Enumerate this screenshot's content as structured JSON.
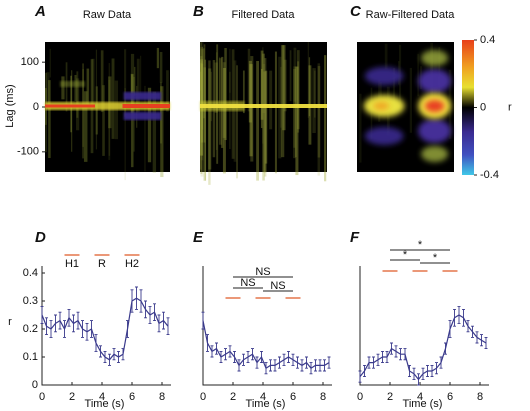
{
  "chart_data": [
    {
      "type": "heatmap",
      "panel": "A",
      "title": "Raw Data",
      "ylabel": "Lag (ms)",
      "ylim": [
        -145,
        145
      ],
      "yticks": [
        100,
        0,
        -100
      ]
    },
    {
      "type": "heatmap",
      "panel": "B",
      "title": "Filtered Data"
    },
    {
      "type": "heatmap",
      "panel": "C",
      "title": "Raw-Filtered Data",
      "colorbar": {
        "label": "r",
        "lim": [
          -0.4,
          0.4
        ],
        "ticks": [
          0.4,
          0,
          -0.4
        ]
      }
    },
    {
      "type": "line",
      "panel": "D",
      "xlabel": "Time (s)",
      "ylabel": "r",
      "color": "#3a3a8c",
      "xlim": [
        0,
        8.6
      ],
      "xticks": [
        0,
        2,
        4,
        6,
        8
      ],
      "ylim": [
        0,
        0.425
      ],
      "yticks": [
        0,
        0.1,
        0.2,
        0.3,
        0.4
      ],
      "x": [
        0,
        0.3,
        0.6,
        0.9,
        1.2,
        1.5,
        1.8,
        2.1,
        2.4,
        2.7,
        3.0,
        3.3,
        3.6,
        3.9,
        4.2,
        4.5,
        4.8,
        5.1,
        5.4,
        5.7,
        6.0,
        6.3,
        6.6,
        6.9,
        7.2,
        7.5,
        7.8,
        8.1,
        8.4
      ],
      "values": [
        0.25,
        0.21,
        0.2,
        0.22,
        0.23,
        0.2,
        0.24,
        0.22,
        0.23,
        0.2,
        0.19,
        0.2,
        0.15,
        0.12,
        0.1,
        0.09,
        0.11,
        0.1,
        0.11,
        0.2,
        0.3,
        0.31,
        0.3,
        0.27,
        0.25,
        0.26,
        0.22,
        0.23,
        0.21
      ],
      "errors": [
        0.03,
        0.03,
        0.03,
        0.03,
        0.03,
        0.03,
        0.03,
        0.03,
        0.03,
        0.03,
        0.03,
        0.03,
        0.03,
        0.02,
        0.02,
        0.02,
        0.02,
        0.02,
        0.02,
        0.03,
        0.04,
        0.04,
        0.04,
        0.03,
        0.03,
        0.03,
        0.03,
        0.03,
        0.03
      ],
      "intervals": [
        {
          "label": "H1",
          "start": 1.5,
          "end": 2.5
        },
        {
          "label": "R",
          "start": 3.5,
          "end": 4.5
        },
        {
          "label": "H2",
          "start": 5.5,
          "end": 6.5
        }
      ]
    },
    {
      "type": "line",
      "panel": "E",
      "xlabel": "Time (s)",
      "color": "#3a3a8c",
      "xlim": [
        0,
        8.6
      ],
      "xticks": [
        0,
        2,
        4,
        6,
        8
      ],
      "ylim": [
        0,
        0.425
      ],
      "x": [
        0,
        0.3,
        0.6,
        0.9,
        1.2,
        1.5,
        1.8,
        2.1,
        2.4,
        2.7,
        3.0,
        3.3,
        3.6,
        3.9,
        4.2,
        4.5,
        4.8,
        5.1,
        5.4,
        5.7,
        6.0,
        6.3,
        6.6,
        6.9,
        7.2,
        7.5,
        7.8,
        8.1,
        8.4
      ],
      "values": [
        0.23,
        0.15,
        0.12,
        0.13,
        0.1,
        0.11,
        0.12,
        0.1,
        0.07,
        0.09,
        0.1,
        0.11,
        0.08,
        0.1,
        0.06,
        0.07,
        0.07,
        0.08,
        0.09,
        0.1,
        0.09,
        0.08,
        0.07,
        0.08,
        0.06,
        0.07,
        0.07,
        0.07,
        0.08
      ],
      "errors": [
        0.03,
        0.03,
        0.02,
        0.02,
        0.02,
        0.02,
        0.02,
        0.02,
        0.02,
        0.02,
        0.02,
        0.02,
        0.02,
        0.02,
        0.02,
        0.02,
        0.02,
        0.02,
        0.02,
        0.02,
        0.02,
        0.02,
        0.02,
        0.02,
        0.02,
        0.02,
        0.02,
        0.02,
        0.02
      ],
      "intervals": [
        {
          "start": 1.5,
          "end": 2.5
        },
        {
          "start": 3.5,
          "end": 4.5
        },
        {
          "start": 5.5,
          "end": 6.5
        }
      ],
      "comparisons": [
        {
          "from": 2,
          "to": 6,
          "label": "NS"
        },
        {
          "from": 2,
          "to": 4,
          "label": "NS"
        },
        {
          "from": 4,
          "to": 6,
          "label": "NS"
        }
      ]
    },
    {
      "type": "line",
      "panel": "F",
      "xlabel": "Time (s)",
      "color": "#3a3a8c",
      "xlim": [
        0,
        8.6
      ],
      "xticks": [
        0,
        2,
        4,
        6,
        8
      ],
      "ylim": [
        0,
        0.425
      ],
      "x": [
        0,
        0.3,
        0.6,
        0.9,
        1.2,
        1.5,
        1.8,
        2.1,
        2.4,
        2.7,
        3.0,
        3.3,
        3.6,
        3.9,
        4.2,
        4.5,
        4.8,
        5.1,
        5.4,
        5.7,
        6.0,
        6.3,
        6.6,
        6.9,
        7.2,
        7.5,
        7.8,
        8.1,
        8.4
      ],
      "values": [
        0.03,
        0.05,
        0.08,
        0.08,
        0.09,
        0.1,
        0.1,
        0.13,
        0.12,
        0.11,
        0.11,
        0.05,
        0.04,
        0.02,
        0.04,
        0.05,
        0.05,
        0.06,
        0.08,
        0.13,
        0.2,
        0.24,
        0.25,
        0.24,
        0.21,
        0.19,
        0.17,
        0.16,
        0.15
      ],
      "errors": [
        0.02,
        0.02,
        0.02,
        0.02,
        0.02,
        0.02,
        0.02,
        0.02,
        0.02,
        0.02,
        0.02,
        0.02,
        0.02,
        0.02,
        0.02,
        0.02,
        0.02,
        0.02,
        0.02,
        0.02,
        0.03,
        0.03,
        0.03,
        0.03,
        0.02,
        0.02,
        0.02,
        0.02,
        0.02
      ],
      "intervals": [
        {
          "start": 1.5,
          "end": 2.5
        },
        {
          "start": 3.5,
          "end": 4.5
        },
        {
          "start": 5.5,
          "end": 6.5
        }
      ],
      "comparisons": [
        {
          "from": 2,
          "to": 6,
          "label": "*"
        },
        {
          "from": 2,
          "to": 4,
          "label": "*"
        },
        {
          "from": 4,
          "to": 6,
          "label": "*"
        }
      ]
    }
  ]
}
